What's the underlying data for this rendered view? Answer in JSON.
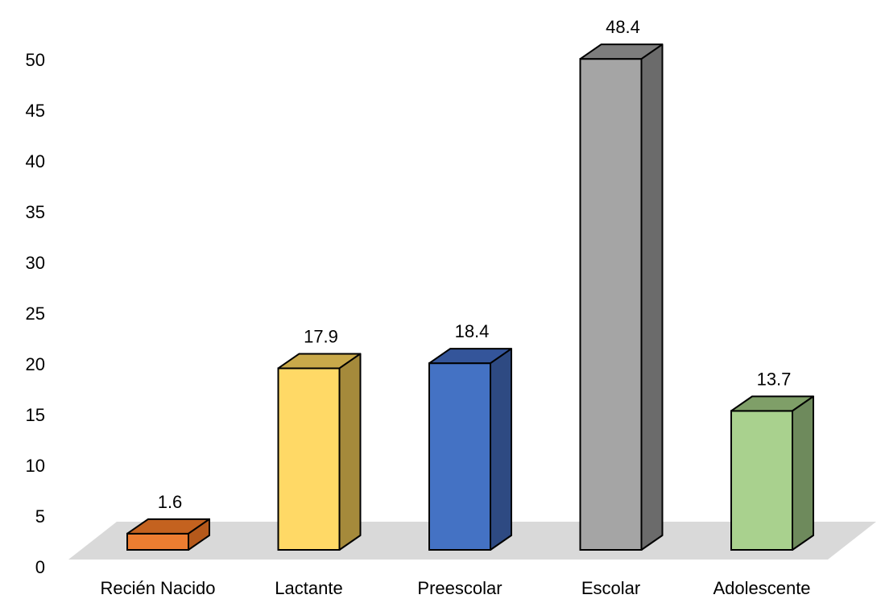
{
  "chart_data": {
    "type": "bar",
    "style": "3d-column",
    "categories": [
      "Recién Nacido",
      "Lactante",
      "Preescolar",
      "Escolar",
      "Adolescente"
    ],
    "values": [
      1.6,
      17.9,
      18.4,
      48.4,
      13.7
    ],
    "value_labels": [
      "1.6",
      "17.9",
      "18.4",
      "48.4",
      "13.7"
    ],
    "colors": [
      "#ED7D31",
      "#FFD966",
      "#4472C4",
      "#A5A5A5",
      "#A9D18E"
    ],
    "side_colors": [
      "#B5591B",
      "#A58A3B",
      "#2E4A82",
      "#6B6B6B",
      "#6E8A5C"
    ],
    "top_colors": [
      "#C4621F",
      "#C9A94A",
      "#34559A",
      "#7D7D7D",
      "#7F9F68"
    ],
    "floor_color": "#D9D9D9",
    "ylim": [
      0,
      50
    ],
    "yticks": [
      0,
      5,
      10,
      15,
      20,
      25,
      30,
      35,
      40,
      45,
      50
    ],
    "grid": false,
    "legend": "none",
    "title": "",
    "xlabel": "",
    "ylabel": ""
  }
}
